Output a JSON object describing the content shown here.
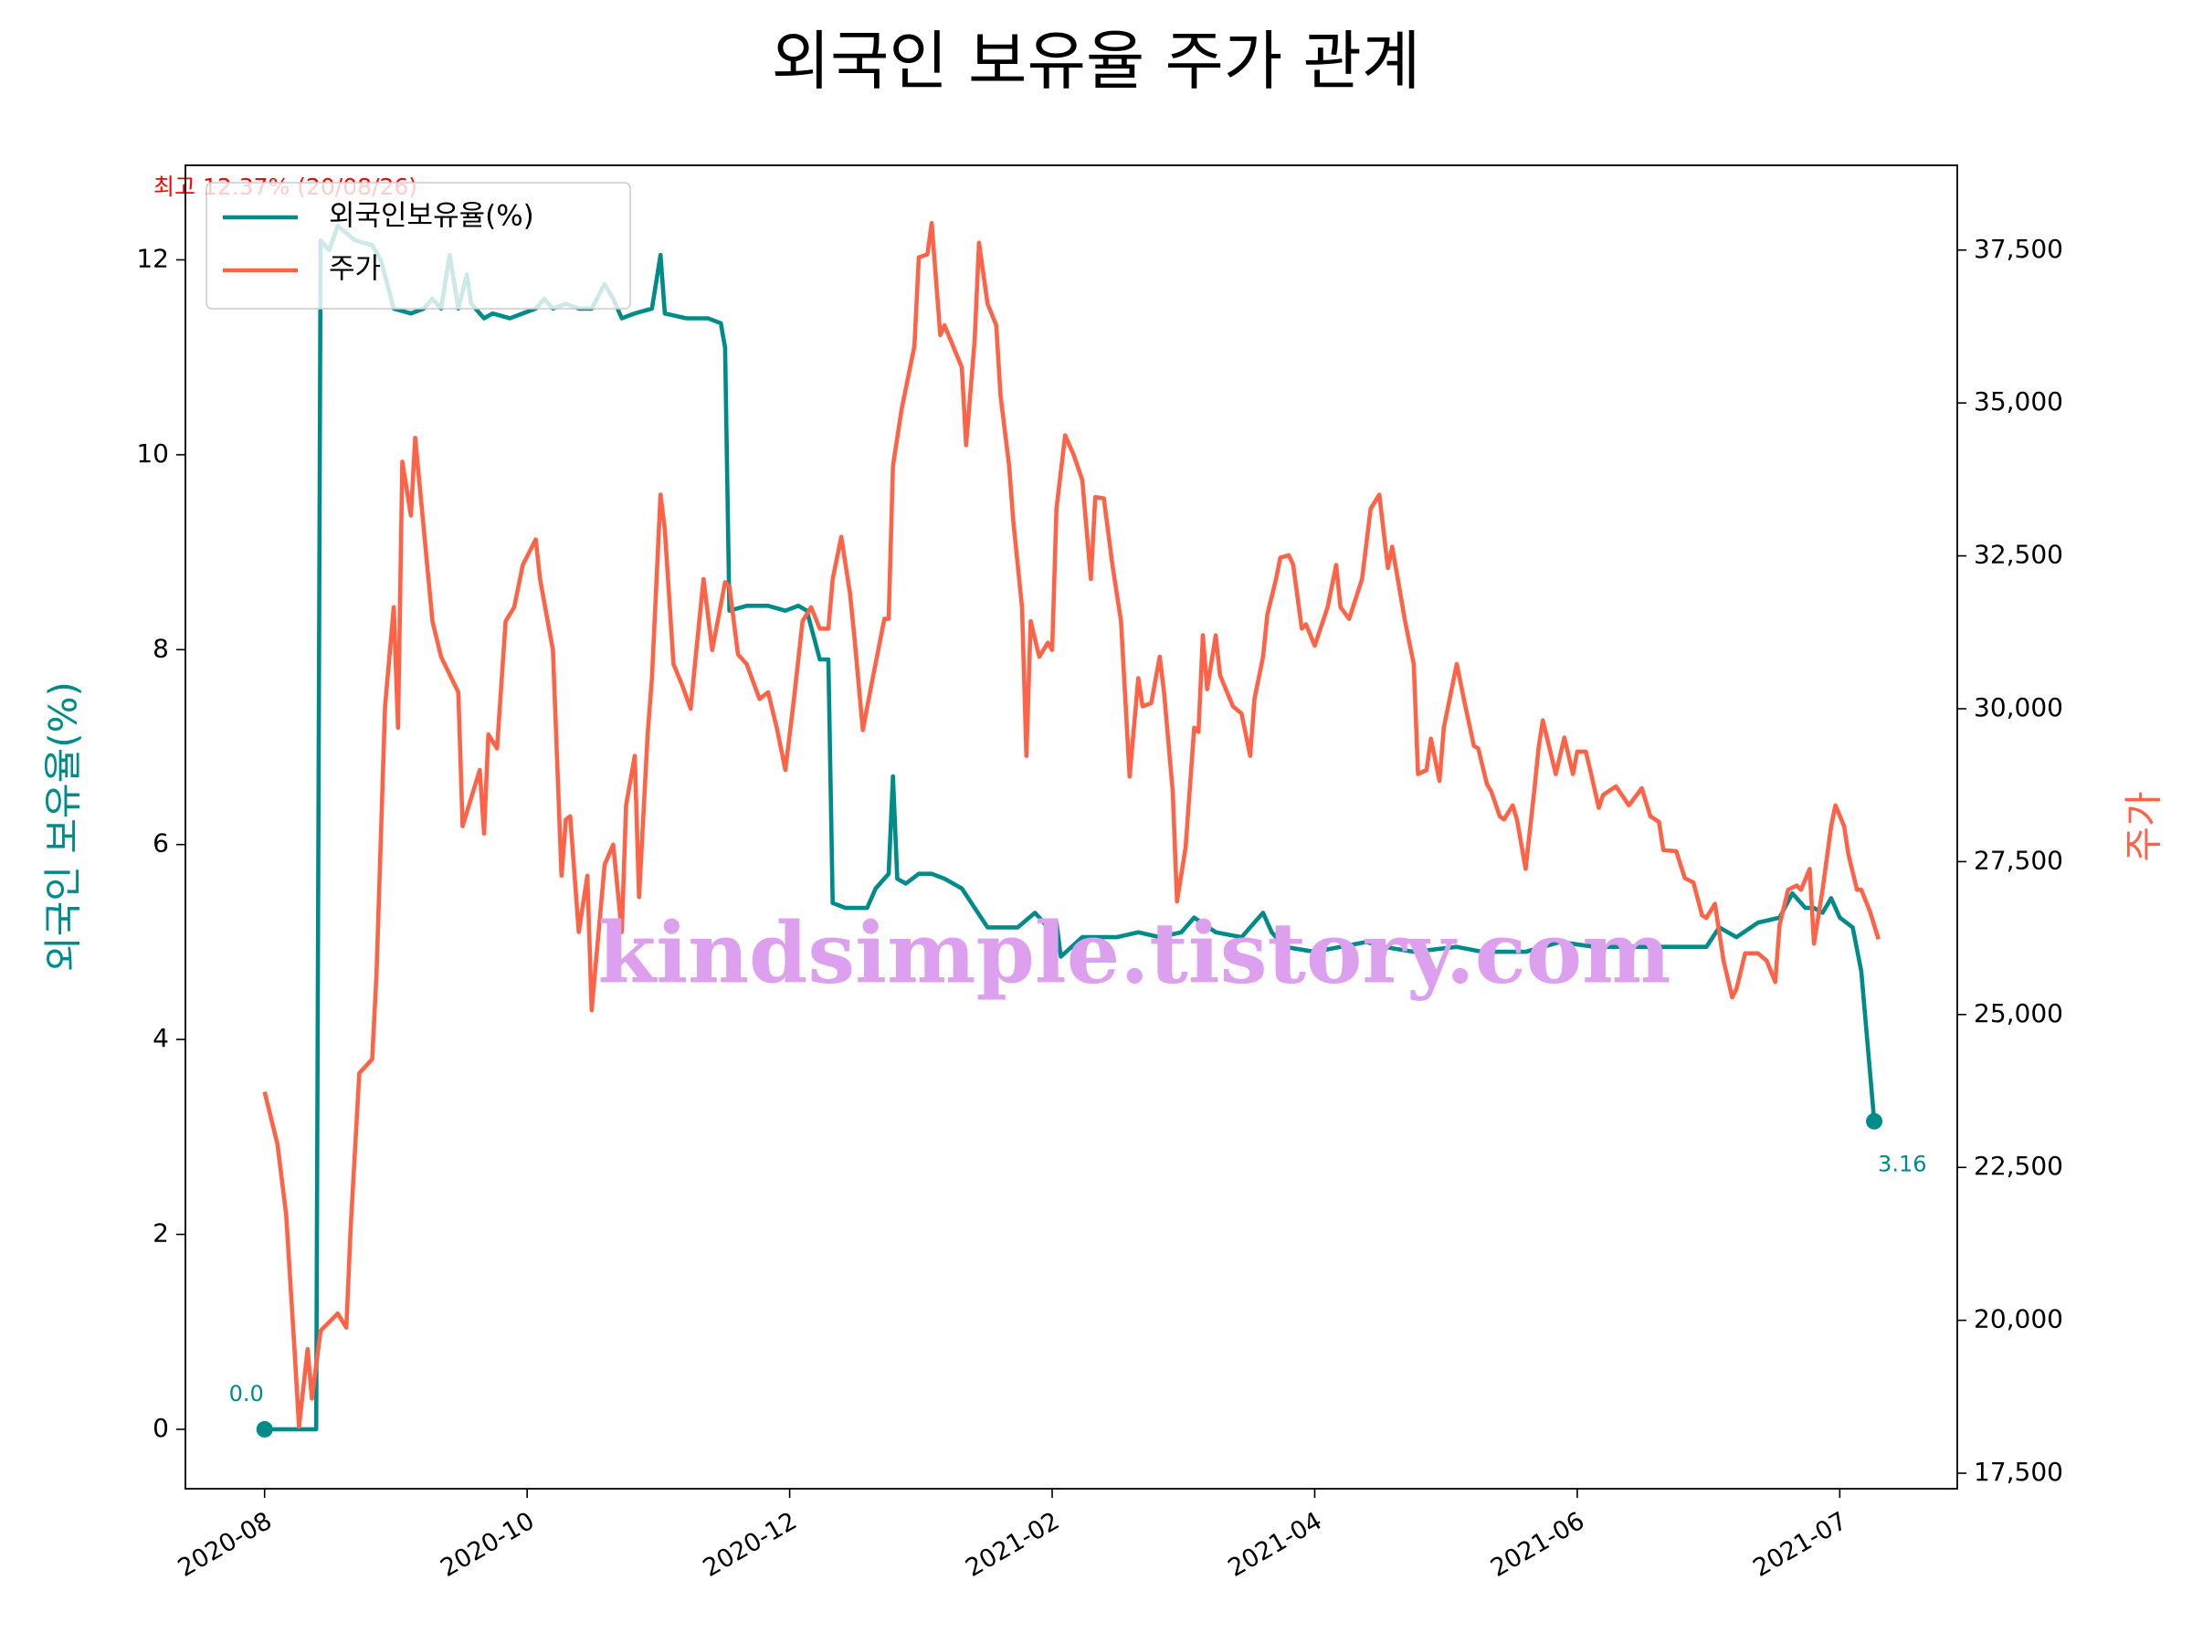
{
  "chart_data": {
    "type": "line",
    "title": "외국인 보유율 주가 관계",
    "ylabel": "외국인 보유율(%)",
    "y2label": "주가",
    "watermark": "kindsimple.tistory.com",
    "annotations": {
      "max": "최고 12.37% (20/08/26)",
      "start": "0.0",
      "end": "3.16"
    },
    "legend": "upper left",
    "xlim": [
      -18.4,
      393.3
    ],
    "xticks": [
      {
        "value": 0,
        "label": "2020-08"
      },
      {
        "value": 61,
        "label": "2020-10"
      },
      {
        "value": 122,
        "label": "2020-12"
      },
      {
        "value": 183,
        "label": "2021-02"
      },
      {
        "value": 244,
        "label": "2021-04"
      },
      {
        "value": 305,
        "label": "2021-06"
      },
      {
        "value": 366,
        "label": "2021-07"
      }
    ],
    "ylim": [
      -0.61,
      12.97
    ],
    "yticks": [
      0,
      2,
      4,
      6,
      8,
      10,
      12
    ],
    "y2lim": [
      17246,
      38886
    ],
    "y2ticks": [
      {
        "value": 17500,
        "label": "17,500"
      },
      {
        "value": 20000,
        "label": "20,000"
      },
      {
        "value": 22500,
        "label": "22,500"
      },
      {
        "value": 25000,
        "label": "25,000"
      },
      {
        "value": 27500,
        "label": "27,500"
      },
      {
        "value": 30000,
        "label": "30,000"
      },
      {
        "value": 32500,
        "label": "32,500"
      },
      {
        "value": 35000,
        "label": "35,000"
      },
      {
        "value": 37500,
        "label": "37,500"
      }
    ],
    "series": [
      {
        "name": "외국인보유율(%)",
        "color": "#008b8b",
        "axis": "y",
        "x": [
          0,
          12,
          13,
          15,
          17,
          21,
          25,
          27,
          30,
          34,
          37,
          39,
          41,
          43,
          45,
          47,
          48,
          51,
          53,
          57,
          60,
          63,
          65,
          67,
          70,
          73,
          76,
          79,
          81,
          83,
          86,
          90,
          92,
          93,
          98,
          103,
          106,
          107,
          108,
          112,
          117,
          121,
          124,
          126,
          129,
          131,
          132,
          135,
          140,
          142,
          145,
          146,
          147,
          149,
          152,
          155,
          158,
          162,
          165,
          168,
          175,
          179,
          182,
          184,
          185,
          190,
          194,
          198,
          203,
          208,
          213,
          216,
          221,
          227,
          232,
          234,
          237,
          244,
          250,
          256,
          260,
          267,
          277,
          283,
          293,
          301,
          309,
          319,
          328,
          335,
          338,
          342,
          347,
          352,
          355,
          358,
          360,
          362,
          364,
          366,
          369,
          371,
          374
        ],
        "values": [
          0,
          0,
          12.2,
          12.1,
          12.35,
          12.2,
          12.15,
          12.0,
          11.5,
          11.45,
          11.5,
          11.6,
          11.5,
          12.05,
          11.5,
          11.85,
          11.55,
          11.4,
          11.45,
          11.4,
          11.45,
          11.5,
          11.6,
          11.5,
          11.55,
          11.5,
          11.5,
          11.75,
          11.6,
          11.4,
          11.45,
          11.5,
          12.05,
          11.45,
          11.4,
          11.4,
          11.35,
          11.1,
          8.4,
          8.45,
          8.45,
          8.4,
          8.45,
          8.4,
          7.9,
          7.9,
          5.4,
          5.35,
          5.35,
          5.55,
          5.7,
          6.7,
          5.65,
          5.6,
          5.7,
          5.7,
          5.65,
          5.55,
          5.35,
          5.15,
          5.15,
          5.3,
          5.15,
          5.2,
          4.85,
          5.05,
          5.05,
          5.05,
          5.1,
          5.05,
          5.1,
          5.25,
          5.1,
          5.05,
          5.3,
          5.1,
          4.95,
          4.9,
          4.95,
          5.0,
          4.95,
          4.9,
          4.95,
          4.9,
          4.9,
          5.0,
          4.95,
          4.95,
          4.95,
          4.95,
          5.15,
          5.05,
          5.2,
          5.25,
          5.5,
          5.35,
          5.35,
          5.3,
          5.45,
          5.25,
          5.15,
          4.7,
          3.16
        ]
      },
      {
        "name": "주가",
        "color": "#ff6347",
        "axis": "y2",
        "x": [
          0,
          3,
          5,
          7,
          8,
          10,
          11,
          13,
          17,
          19,
          20,
          22,
          25,
          26,
          28,
          30,
          31,
          32,
          34,
          35,
          39,
          41,
          45,
          46,
          50,
          51,
          52,
          54,
          56,
          58,
          60,
          63,
          64,
          67,
          69,
          70,
          71,
          73,
          75,
          76,
          79,
          81,
          83,
          84,
          86,
          87,
          89,
          90,
          92,
          93,
          95,
          97,
          99,
          100,
          102,
          104,
          107,
          108,
          110,
          112,
          115,
          117,
          119,
          121,
          123,
          125,
          127,
          129,
          131,
          132,
          134,
          136,
          137,
          139,
          141,
          144,
          145,
          146,
          148,
          151,
          152,
          154,
          155,
          157,
          158,
          162,
          163,
          165,
          166,
          168,
          170,
          171,
          173,
          174,
          176,
          177,
          178,
          180,
          182,
          183,
          184,
          186,
          188,
          190,
          192,
          193,
          195,
          197,
          199,
          201,
          203,
          204,
          206,
          208,
          209,
          211,
          212,
          214,
          216,
          217,
          218,
          219,
          221,
          222,
          225,
          227,
          229,
          230,
          232,
          233,
          235,
          236,
          238,
          239,
          241,
          242,
          244,
          247,
          249,
          250,
          252,
          255,
          257,
          259,
          261,
          262,
          265,
          267,
          268,
          270,
          271,
          273,
          274,
          277,
          279,
          281,
          282,
          284,
          285,
          287,
          288,
          290,
          291,
          293,
          295,
          296,
          297,
          299,
          300,
          302,
          304,
          305,
          307,
          308,
          310,
          311,
          314,
          317,
          320,
          322,
          324,
          325,
          328,
          330,
          332,
          334,
          335,
          337,
          339,
          341,
          342,
          344,
          347,
          349,
          351,
          352,
          354,
          356,
          357,
          359,
          360,
          362,
          364,
          365,
          367,
          368,
          370,
          371,
          373,
          375
        ],
        "values": [
          23736,
          22880,
          21730,
          19460,
          18260,
          19530,
          18720,
          19830,
          20110,
          19880,
          21500,
          24040,
          24270,
          25650,
          30040,
          31660,
          29690,
          34040,
          33160,
          34430,
          31430,
          30850,
          30270,
          28080,
          29000,
          27960,
          29580,
          29350,
          31430,
          31660,
          32350,
          32770,
          32120,
          30960,
          27270,
          28190,
          28240,
          26350,
          27270,
          25070,
          27450,
          27780,
          26350,
          28420,
          29230,
          26920,
          29580,
          30500,
          33500,
          32930,
          30730,
          30390,
          30000,
          30730,
          32120,
          30960,
          32070,
          32000,
          30890,
          30730,
          30160,
          30270,
          29690,
          29000,
          30160,
          31430,
          31660,
          31310,
          31310,
          32120,
          32810,
          31890,
          31200,
          29650,
          30390,
          31470,
          31470,
          33970,
          34890,
          35930,
          37380,
          37430,
          37940,
          36110,
          36270,
          35580,
          34310,
          36040,
          37620,
          36620,
          36270,
          35120,
          33970,
          33040,
          31660,
          29230,
          31430,
          30850,
          31080,
          30960,
          33270,
          34470,
          34150,
          33740,
          32120,
          33460,
          33440,
          32350,
          31430,
          28890,
          30500,
          30040,
          30090,
          30850,
          30270,
          28650,
          26850,
          27730,
          29690,
          29620,
          31200,
          30320,
          31200,
          30550,
          30040,
          29920,
          29230,
          30160,
          30850,
          31540,
          32120,
          32470,
          32510,
          32350,
          31310,
          31380,
          31030,
          31660,
          32350,
          31660,
          31470,
          32120,
          33270,
          33500,
          32300,
          32650,
          31430,
          30730,
          28930,
          29000,
          29510,
          28820,
          29690,
          30730,
          30040,
          29390,
          29350,
          28770,
          28650,
          28240,
          28190,
          28420,
          28190,
          27380,
          28650,
          29350,
          29810,
          29230,
          28930,
          29530,
          28930,
          29300,
          29300,
          29000,
          28380,
          28590,
          28730,
          28420,
          28700,
          28240,
          28150,
          27690,
          27670,
          27230,
          27160,
          26620,
          26580,
          26810,
          25880,
          25280,
          25420,
          26000,
          26000,
          25880,
          25530,
          26460,
          27040,
          27110,
          27040,
          27380,
          26160,
          27040,
          28080,
          28420,
          28080,
          27620,
          27040,
          27040,
          26690,
          26230
        ]
      }
    ]
  }
}
